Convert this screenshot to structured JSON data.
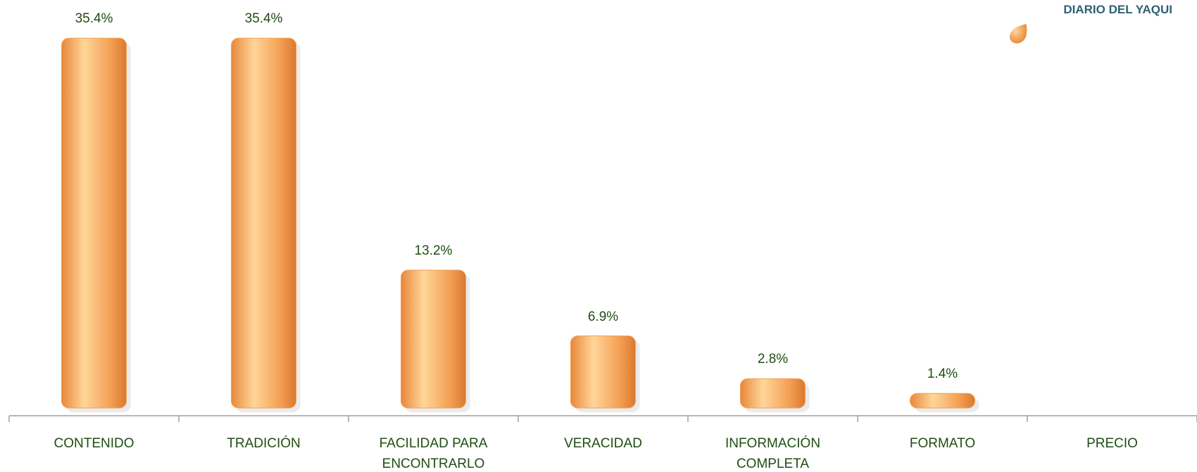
{
  "chart_data": {
    "type": "bar",
    "categories": [
      "CONTENIDO",
      "TRADICIÓN",
      "FACILIDAD PARA ENCONTRARLO",
      "VERACIDAD",
      "INFORMACIÓN COMPLETA",
      "FORMATO",
      "PRECIO"
    ],
    "series": [
      {
        "name": "DIARIO DEL YAQUI",
        "color": "#f4a055",
        "values": [
          35.4,
          35.4,
          13.2,
          6.9,
          2.8,
          1.4,
          0
        ],
        "value_labels": [
          "35.4%",
          "35.4%",
          "13.2%",
          "6.9%",
          "2.8%",
          "1.4%",
          null
        ]
      }
    ],
    "ylim": [
      0,
      40
    ],
    "legend": "top-right"
  }
}
